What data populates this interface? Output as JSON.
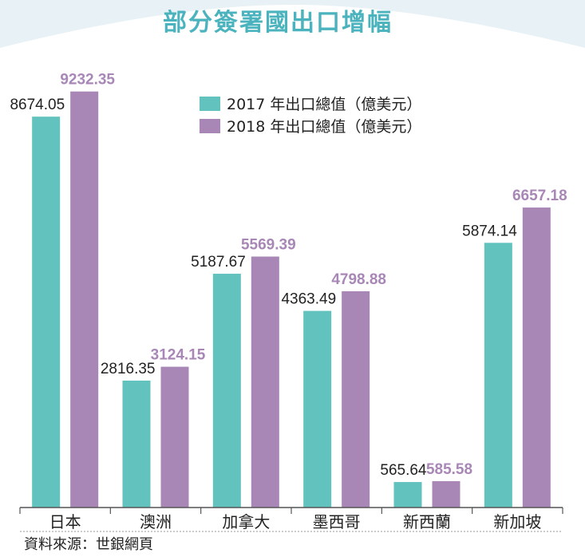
{
  "chart_data": {
    "type": "bar",
    "title": "部分簽署國出口增幅",
    "categories": [
      "日本",
      "澳洲",
      "加拿大",
      "墨西哥",
      "新西蘭",
      "新加坡"
    ],
    "series": [
      {
        "name": "2017 年出口總值（億美元）",
        "values": [
          8674.05,
          2816.35,
          5187.67,
          4363.49,
          565.64,
          5874.14
        ]
      },
      {
        "name": "2018 年出口總值（億美元）",
        "values": [
          9232.35,
          3124.15,
          5569.39,
          4798.88,
          585.58,
          6657.18
        ]
      }
    ],
    "value_labels": [
      [
        "8674.05",
        "2816.35",
        "5187.67",
        "4363.49",
        "565.64",
        "5874.14"
      ],
      [
        "9232.35",
        "3124.15",
        "5569.39",
        "4798.88",
        "585.58",
        "6657.18"
      ]
    ],
    "ylim": [
      0,
      10200
    ],
    "grid": false,
    "legend_position": "top-right",
    "colors": {
      "series_2017": "#62c2be",
      "series_2018": "#a887b6",
      "header_bg": "#e8f1f6",
      "title": "#4bb3bd"
    },
    "source": "資料來源：世銀網頁"
  }
}
